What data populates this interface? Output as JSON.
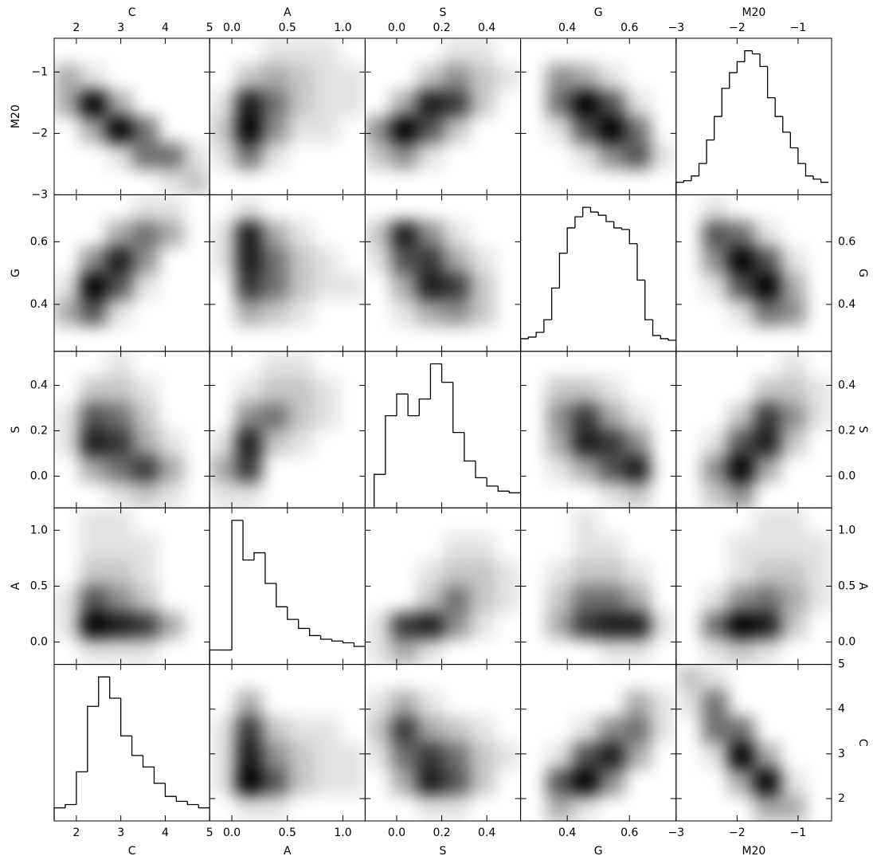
{
  "chart_data": {
    "type": "matrix",
    "variables": [
      {
        "name": "C",
        "lim": [
          1.5,
          5
        ],
        "ticks": [
          2,
          3,
          4,
          5
        ]
      },
      {
        "name": "A",
        "lim": [
          -0.2,
          1.2
        ],
        "ticks": [
          {
            "value": 0,
            "label": "0.0"
          },
          {
            "value": 0.5,
            "label": "0.5"
          },
          {
            "value": 1,
            "label": "1.0"
          }
        ]
      },
      {
        "name": "S",
        "lim": [
          -0.14,
          0.55
        ],
        "ticks": [
          {
            "value": 0,
            "label": "0.0"
          },
          {
            "value": 0.2,
            "label": "0.2"
          },
          {
            "value": 0.4,
            "label": "0.4"
          }
        ]
      },
      {
        "name": "G",
        "lim": [
          0.25,
          0.75
        ],
        "ticks": [
          0.4,
          0.6
        ]
      },
      {
        "name": "M20",
        "lim": [
          -3,
          -0.45
        ],
        "ticks": [
          {
            "value": -3,
            "label": "−3"
          },
          {
            "value": -2,
            "label": "−2"
          },
          {
            "value": -1,
            "label": "−1"
          }
        ]
      }
    ],
    "histograms": [
      {
        "variable": 0,
        "bins": [
          1.5,
          1.75,
          2,
          2.25,
          2.5,
          2.75,
          3,
          3.25,
          3.5,
          3.75,
          4,
          4.25,
          4.5,
          4.75,
          5
        ],
        "counts": [
          8,
          10,
          30,
          70,
          88,
          75,
          52,
          40,
          33,
          23,
          15,
          12,
          10,
          8
        ]
      },
      {
        "variable": 1,
        "bins": [
          -0.2,
          -0.1,
          0,
          0.1,
          0.2,
          0.3,
          0.4,
          0.5,
          0.6,
          0.7,
          0.8,
          0.9,
          1,
          1.1,
          1.2
        ],
        "counts": [
          8,
          8,
          80,
          58,
          62,
          45,
          32,
          25,
          20,
          16,
          14,
          13,
          12,
          10
        ]
      },
      {
        "variable": 2,
        "bins": [
          -0.1,
          -0.05,
          0,
          0.05,
          0.1,
          0.15,
          0.2,
          0.25,
          0.3,
          0.35,
          0.4,
          0.45,
          0.5,
          0.55
        ],
        "counts": [
          20,
          55,
          68,
          55,
          65,
          86,
          75,
          45,
          28,
          18,
          13,
          10,
          9
        ]
      },
      {
        "variable": 3,
        "bins": [
          0.25,
          0.275,
          0.3,
          0.325,
          0.35,
          0.375,
          0.4,
          0.425,
          0.45,
          0.475,
          0.5,
          0.525,
          0.55,
          0.575,
          0.6,
          0.625,
          0.65,
          0.675,
          0.7,
          0.725,
          0.75
        ],
        "counts": [
          8,
          9,
          12,
          20,
          40,
          62,
          78,
          85,
          91,
          88,
          86,
          82,
          78,
          77,
          68,
          45,
          20,
          10,
          8,
          7
        ]
      },
      {
        "variable": 4,
        "bins": [
          -3,
          -2.875,
          -2.75,
          -2.625,
          -2.5,
          -2.375,
          -2.25,
          -2.125,
          -2,
          -1.875,
          -1.75,
          -1.625,
          -1.5,
          -1.375,
          -1.25,
          -1.125,
          -1,
          -0.875,
          -0.75,
          -0.625,
          -0.5
        ],
        "counts": [
          8,
          9,
          12,
          20,
          35,
          50,
          68,
          78,
          85,
          92,
          90,
          82,
          62,
          50,
          40,
          30,
          20,
          12,
          10,
          8
        ]
      }
    ],
    "densities": [
      {
        "x": 0,
        "y": 4,
        "cells": [
          [
            0,
            0,
            0,
            0,
            0,
            0
          ],
          [
            3,
            1,
            0,
            0,
            0,
            0
          ],
          [
            3,
            9,
            3,
            0,
            0,
            0
          ],
          [
            0,
            3,
            9,
            5,
            0,
            0
          ],
          [
            0,
            0,
            1,
            5,
            5,
            1
          ],
          [
            0,
            0,
            0,
            0,
            1,
            2
          ]
        ]
      },
      {
        "x": 1,
        "y": 4,
        "cells": [
          [
            0,
            0,
            1,
            1,
            1,
            0
          ],
          [
            0,
            2,
            3,
            2,
            1,
            1
          ],
          [
            1,
            8,
            5,
            2,
            1,
            1
          ],
          [
            2,
            9,
            4,
            1,
            1,
            0
          ],
          [
            1,
            5,
            1,
            0,
            0,
            0
          ],
          [
            0,
            0,
            0,
            0,
            0,
            0
          ]
        ]
      },
      {
        "x": 2,
        "y": 4,
        "cells": [
          [
            0,
            0,
            0,
            1,
            1,
            0
          ],
          [
            0,
            0,
            2,
            4,
            2,
            1
          ],
          [
            0,
            3,
            8,
            7,
            2,
            0
          ],
          [
            4,
            9,
            6,
            2,
            0,
            0
          ],
          [
            2,
            4,
            1,
            0,
            0,
            0
          ],
          [
            0,
            0,
            0,
            0,
            0,
            0
          ]
        ]
      },
      {
        "x": 3,
        "y": 4,
        "cells": [
          [
            0,
            0,
            0,
            0,
            0,
            0
          ],
          [
            0,
            4,
            3,
            1,
            0,
            0
          ],
          [
            0,
            5,
            9,
            6,
            1,
            0
          ],
          [
            0,
            1,
            6,
            9,
            5,
            0
          ],
          [
            0,
            0,
            1,
            4,
            6,
            1
          ],
          [
            0,
            0,
            0,
            0,
            0,
            0
          ]
        ]
      },
      {
        "x": 0,
        "y": 3,
        "cells": [
          [
            0,
            0,
            0,
            1,
            1,
            0
          ],
          [
            0,
            0,
            3,
            5,
            3,
            0
          ],
          [
            0,
            4,
            8,
            4,
            0,
            0
          ],
          [
            1,
            9,
            6,
            1,
            0,
            0
          ],
          [
            3,
            6,
            1,
            0,
            0,
            0
          ],
          [
            0,
            0,
            0,
            0,
            0,
            0
          ]
        ]
      },
      {
        "x": 1,
        "y": 3,
        "cells": [
          [
            0,
            1,
            0,
            0,
            0,
            0
          ],
          [
            1,
            8,
            3,
            1,
            0,
            0
          ],
          [
            1,
            8,
            5,
            2,
            1,
            0
          ],
          [
            0,
            7,
            5,
            2,
            1,
            1
          ],
          [
            0,
            3,
            2,
            1,
            0,
            0
          ],
          [
            0,
            0,
            0,
            0,
            0,
            0
          ]
        ]
      },
      {
        "x": 2,
        "y": 3,
        "cells": [
          [
            0,
            0,
            0,
            0,
            0,
            0
          ],
          [
            2,
            8,
            4,
            1,
            0,
            0
          ],
          [
            1,
            6,
            7,
            3,
            1,
            0
          ],
          [
            0,
            3,
            8,
            7,
            2,
            0
          ],
          [
            0,
            1,
            3,
            4,
            2,
            0
          ],
          [
            0,
            0,
            0,
            0,
            0,
            0
          ]
        ]
      },
      {
        "x": 0,
        "y": 2,
        "cells": [
          [
            0,
            0,
            1,
            0,
            0,
            0
          ],
          [
            0,
            2,
            2,
            1,
            0,
            0
          ],
          [
            1,
            6,
            5,
            2,
            0,
            0
          ],
          [
            1,
            8,
            7,
            3,
            1,
            0
          ],
          [
            0,
            3,
            5,
            7,
            3,
            0
          ],
          [
            0,
            0,
            1,
            2,
            1,
            0
          ]
        ]
      },
      {
        "x": 1,
        "y": 2,
        "cells": [
          [
            0,
            0,
            1,
            1,
            0,
            0
          ],
          [
            0,
            1,
            2,
            2,
            1,
            0
          ],
          [
            0,
            4,
            5,
            2,
            1,
            0
          ],
          [
            1,
            8,
            2,
            1,
            0,
            0
          ],
          [
            3,
            7,
            0,
            0,
            0,
            0
          ],
          [
            1,
            1,
            0,
            0,
            0,
            0
          ]
        ]
      },
      {
        "x": 0,
        "y": 1,
        "cells": [
          [
            0,
            1,
            1,
            0,
            0,
            0
          ],
          [
            0,
            1,
            1,
            1,
            0,
            0
          ],
          [
            0,
            2,
            2,
            1,
            0,
            0
          ],
          [
            1,
            6,
            4,
            2,
            0,
            0
          ],
          [
            1,
            9,
            8,
            7,
            3,
            0
          ],
          [
            0,
            1,
            1,
            1,
            0,
            0
          ]
        ]
      }
    ]
  }
}
